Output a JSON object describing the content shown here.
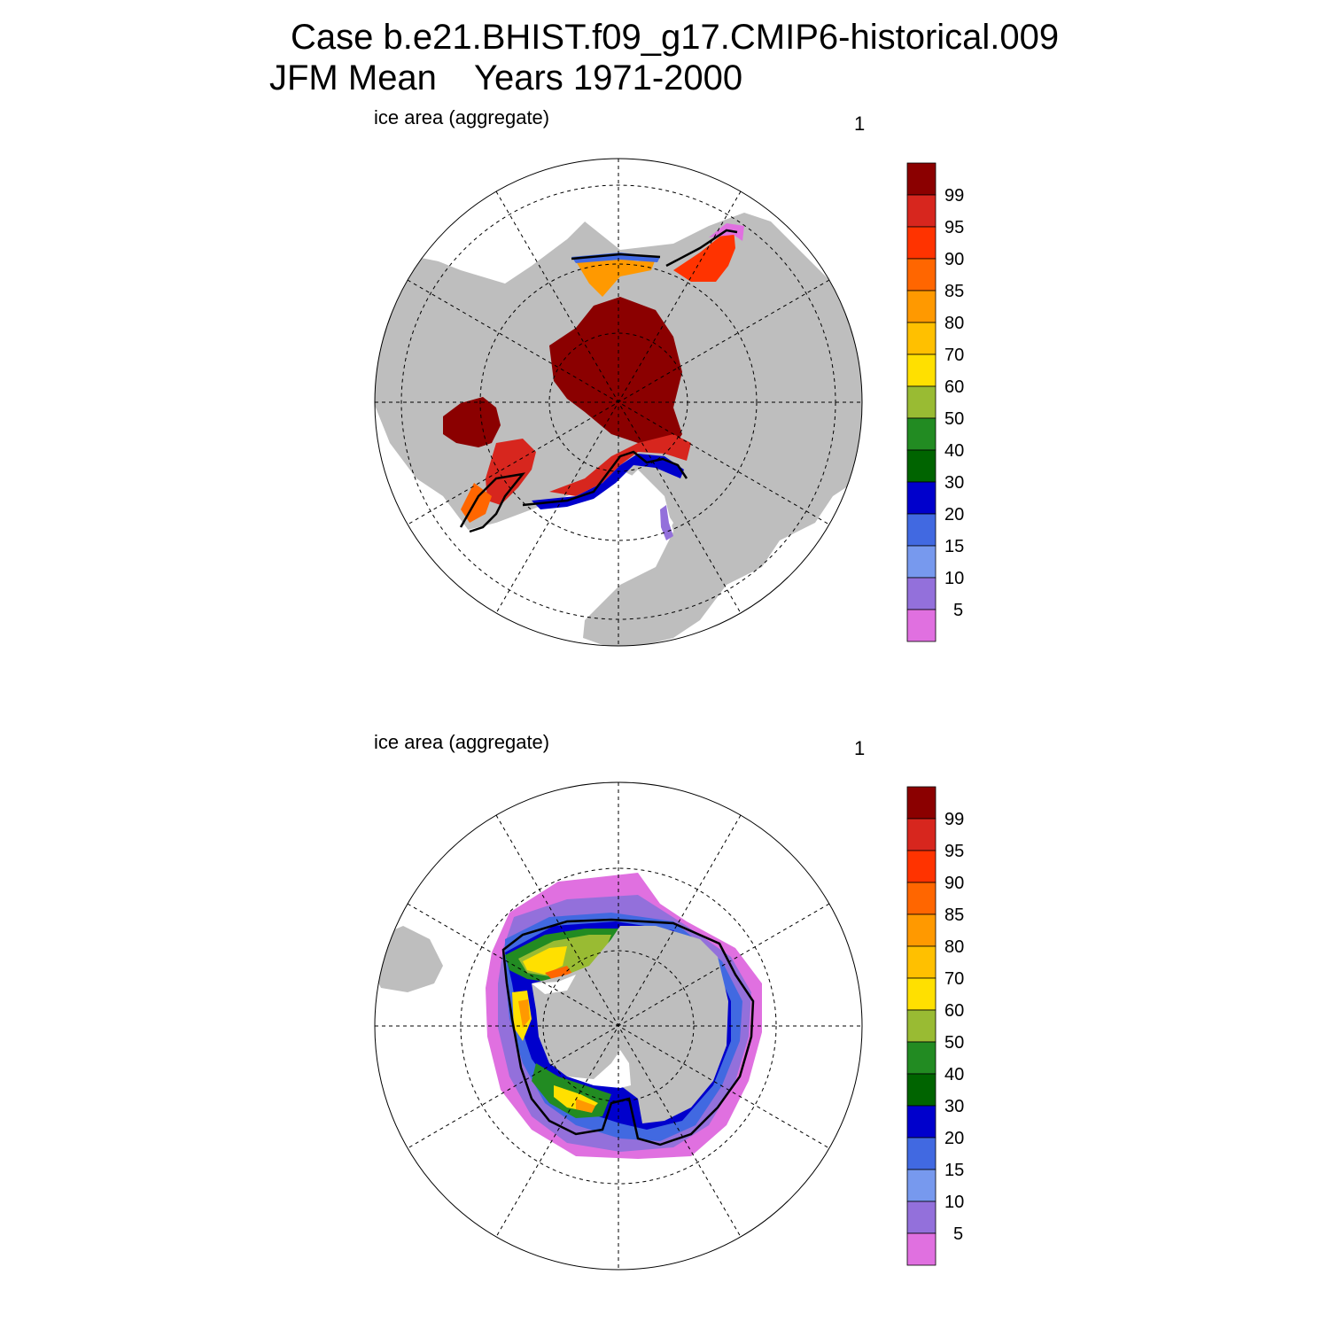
{
  "title": {
    "line1": "Case b.e21.BHIST.f09_g17.CMIP6-historical.009",
    "line2_part1": "JFM Mean",
    "line2_part2": "Years 1971-2000"
  },
  "panels": [
    {
      "id": "nh",
      "hemisphere": "north",
      "left_label": "ice area  (aggregate)",
      "right_label": "1"
    },
    {
      "id": "sh",
      "hemisphere": "south",
      "left_label": "ice area  (aggregate)",
      "right_label": "1"
    }
  ],
  "colorbar": {
    "labels": [
      "99",
      "95",
      "90",
      "85",
      "80",
      "70",
      "60",
      "50",
      "40",
      "30",
      "20",
      "15",
      "10",
      "5"
    ],
    "colors": [
      "#8b0000",
      "#d7261e",
      "#ff3300",
      "#ff6600",
      "#ff9900",
      "#ffc000",
      "#ffe000",
      "#99bb33",
      "#228b22",
      "#006400",
      "#0000cc",
      "#4169e1",
      "#7799ee",
      "#9370db",
      "#e070e0"
    ]
  },
  "colors": {
    "land": "#bebebe",
    "ocean": "#ffffff",
    "ice_edge": "#000000"
  }
}
